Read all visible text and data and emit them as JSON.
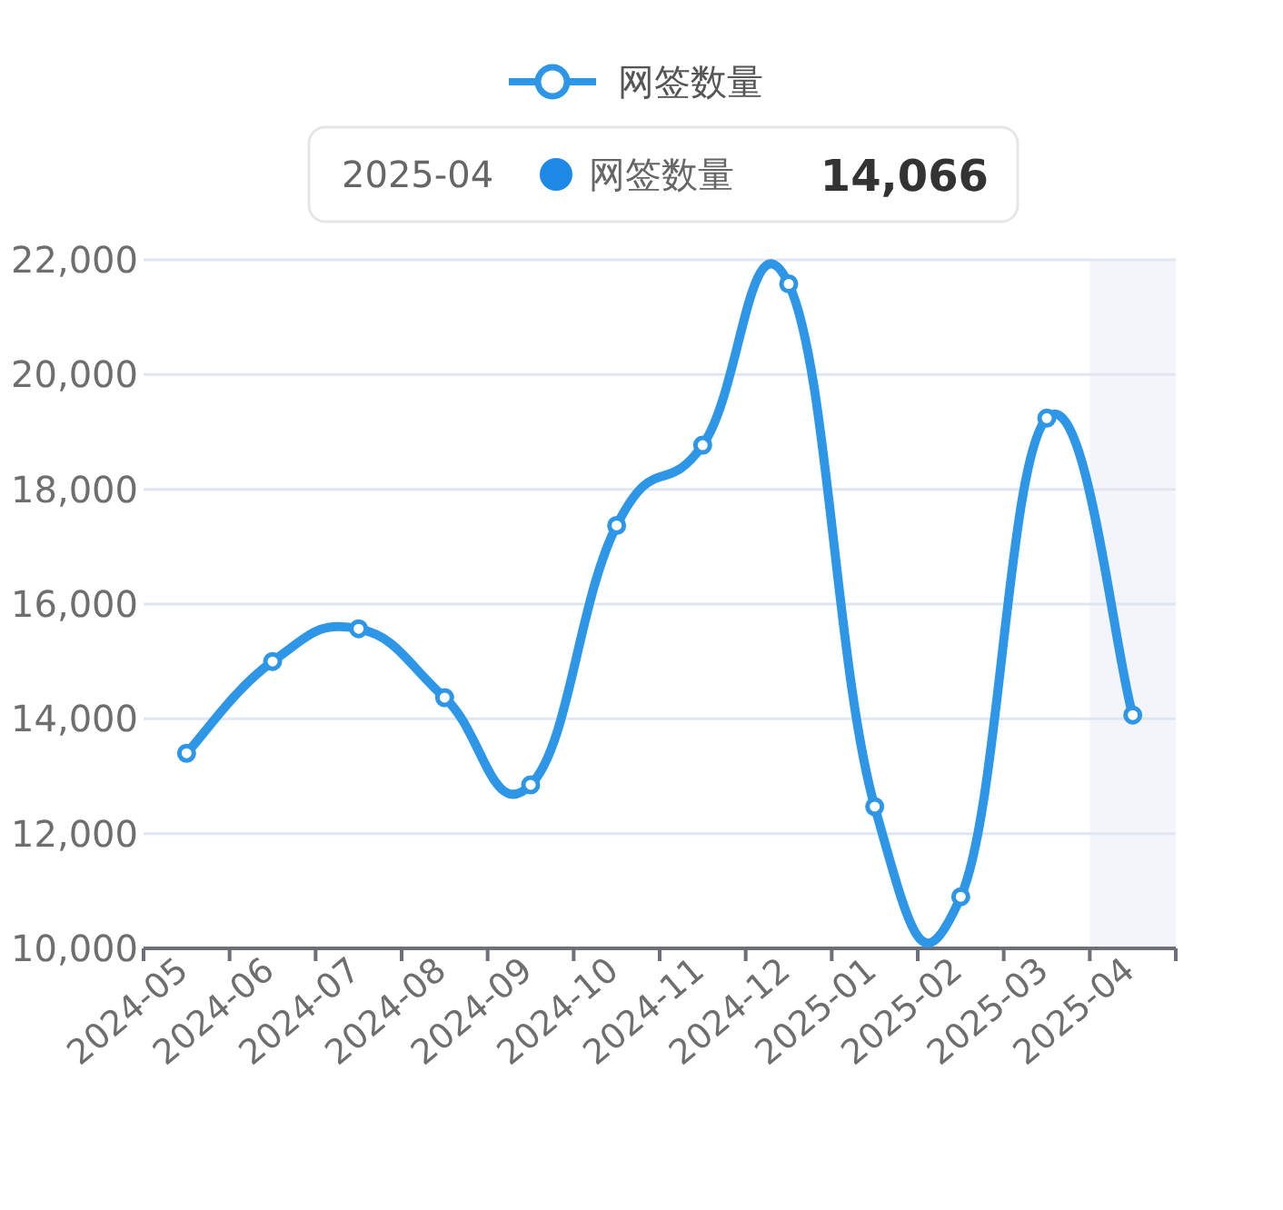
{
  "chart_data": {
    "type": "line",
    "legend": "top",
    "grid": "y",
    "marker": "circle",
    "line_style": "solid",
    "categories": [
      "2024-05",
      "2024-06",
      "2024-07",
      "2024-08",
      "2024-09",
      "2024-10",
      "2024-11",
      "2024-12",
      "2025-01",
      "2025-02",
      "2025-03",
      "2025-04"
    ],
    "series": [
      {
        "name": "网签数量",
        "color": "#2e96e6",
        "values": [
          13400,
          15000,
          15570,
          14370,
          12850,
          17370,
          18770,
          21580,
          12470,
          10900,
          19240,
          14066
        ]
      }
    ],
    "ylim": [
      10000,
      22000
    ],
    "yticks": [
      {
        "value": 10000,
        "label": "10,000"
      },
      {
        "value": 12000,
        "label": "12,000"
      },
      {
        "value": 14000,
        "label": "14,000"
      },
      {
        "value": 16000,
        "label": "16,000"
      },
      {
        "value": 18000,
        "label": "18,000"
      },
      {
        "value": 20000,
        "label": "20,000"
      },
      {
        "value": 22000,
        "label": "22,000"
      }
    ],
    "bands": [
      {
        "axis": "x",
        "from": "2025-04",
        "to": "2025-04",
        "color": "#f3f5fa"
      }
    ],
    "annotations": [
      "2025-04",
      "网签数量",
      "14,066"
    ]
  }
}
